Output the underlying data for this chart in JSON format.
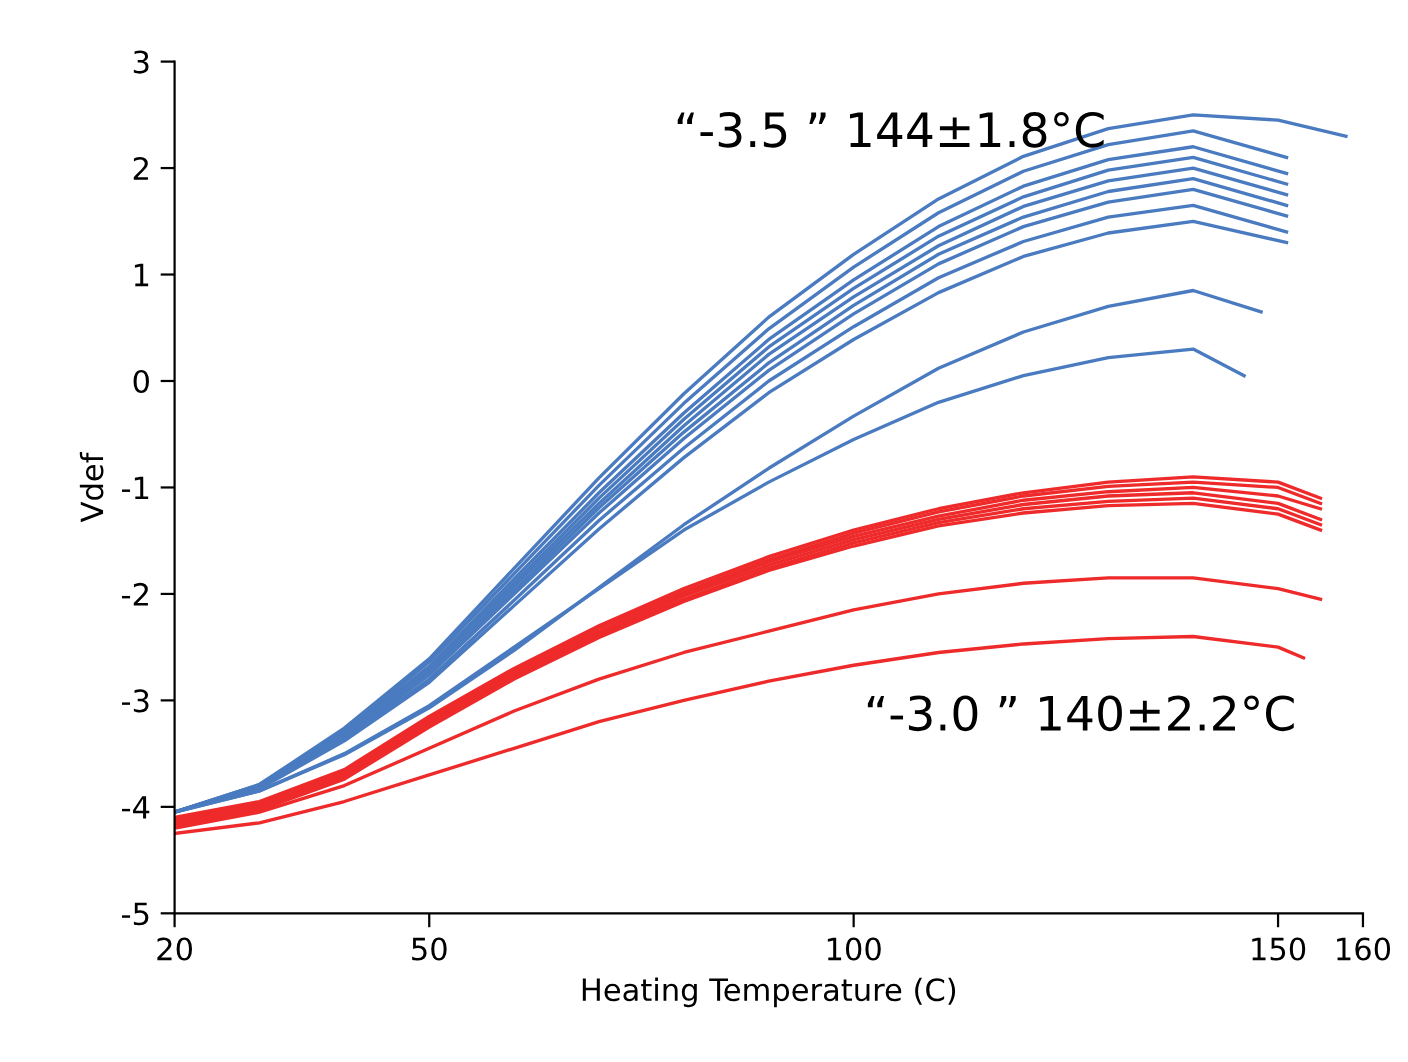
{
  "chart_data": {
    "type": "line",
    "xlabel": "Heating Temperature (C)",
    "ylabel": "Vdef",
    "xlim": [
      20,
      160
    ],
    "ylim": [
      -5,
      3
    ],
    "xticks": [
      20,
      50,
      100,
      150,
      160
    ],
    "yticks": [
      -5,
      -4,
      -3,
      -2,
      -1,
      0,
      1,
      2,
      3
    ],
    "grid": false,
    "legend": false,
    "marker": "none",
    "line_style": "solid",
    "annotations": [
      "“-3.5 ” 144±1.8°C",
      "“-3.0 ” 140±2.2°C"
    ],
    "series": [
      {
        "color": "#4a7bc0",
        "x": [
          20,
          30,
          40,
          50,
          60,
          70,
          80,
          90,
          100,
          110,
          120,
          130,
          140,
          150,
          158
        ],
        "values": [
          -4.05,
          -3.79,
          -3.26,
          -2.61,
          -1.76,
          -0.91,
          -0.12,
          0.6,
          1.19,
          1.71,
          2.11,
          2.37,
          2.5,
          2.45,
          2.3
        ]
      },
      {
        "color": "#4a7bc0",
        "x": [
          20,
          30,
          40,
          50,
          60,
          70,
          80,
          90,
          100,
          110,
          120,
          130,
          140,
          151
        ],
        "values": [
          -4.05,
          -3.79,
          -3.28,
          -2.64,
          -1.81,
          -0.98,
          -0.21,
          0.49,
          1.07,
          1.58,
          1.97,
          2.22,
          2.35,
          2.1
        ]
      },
      {
        "color": "#4a7bc0",
        "x": [
          20,
          30,
          40,
          50,
          60,
          70,
          80,
          90,
          100,
          110,
          120,
          130,
          140,
          151
        ],
        "values": [
          -4.05,
          -3.8,
          -3.3,
          -2.68,
          -1.86,
          -1.05,
          -0.3,
          0.39,
          0.95,
          1.45,
          1.83,
          2.08,
          2.2,
          1.95
        ]
      },
      {
        "color": "#4a7bc0",
        "x": [
          20,
          30,
          40,
          50,
          60,
          70,
          80,
          90,
          100,
          110,
          120,
          130,
          140,
          151
        ],
        "values": [
          -4.05,
          -3.8,
          -3.31,
          -2.7,
          -1.9,
          -1.1,
          -0.36,
          0.32,
          0.87,
          1.36,
          1.73,
          1.98,
          2.1,
          1.85
        ]
      },
      {
        "color": "#4a7bc0",
        "x": [
          20,
          30,
          40,
          50,
          60,
          70,
          80,
          90,
          100,
          110,
          120,
          130,
          140,
          151
        ],
        "values": [
          -4.05,
          -3.81,
          -3.32,
          -2.72,
          -1.93,
          -1.15,
          -0.42,
          0.25,
          0.79,
          1.27,
          1.64,
          1.88,
          2.0,
          1.75
        ]
      },
      {
        "color": "#4a7bc0",
        "x": [
          20,
          30,
          40,
          50,
          60,
          70,
          80,
          90,
          100,
          110,
          120,
          130,
          140,
          151
        ],
        "values": [
          -4.05,
          -3.81,
          -3.34,
          -2.74,
          -1.97,
          -1.19,
          -0.48,
          0.17,
          0.71,
          1.19,
          1.54,
          1.78,
          1.9,
          1.65
        ]
      },
      {
        "color": "#4a7bc0",
        "x": [
          20,
          30,
          40,
          50,
          60,
          70,
          80,
          90,
          100,
          110,
          120,
          130,
          140,
          151
        ],
        "values": [
          -4.05,
          -3.82,
          -3.35,
          -2.76,
          -2.0,
          -1.24,
          -0.54,
          0.1,
          0.63,
          1.1,
          1.45,
          1.68,
          1.8,
          1.55
        ]
      },
      {
        "color": "#4a7bc0",
        "x": [
          20,
          30,
          40,
          50,
          60,
          70,
          80,
          90,
          100,
          110,
          120,
          130,
          140,
          151
        ],
        "values": [
          -4.05,
          -3.82,
          -3.37,
          -2.8,
          -2.06,
          -1.31,
          -0.63,
          0.0,
          0.51,
          0.97,
          1.31,
          1.54,
          1.65,
          1.4
        ]
      },
      {
        "color": "#4a7bc0",
        "x": [
          20,
          30,
          40,
          50,
          60,
          70,
          80,
          90,
          100,
          110,
          120,
          130,
          140,
          151
        ],
        "values": [
          -4.05,
          -3.83,
          -3.38,
          -2.83,
          -2.11,
          -1.39,
          -0.72,
          -0.11,
          0.39,
          0.83,
          1.17,
          1.39,
          1.5,
          1.3
        ]
      },
      {
        "color": "#4a7bc0",
        "x": [
          20,
          30,
          40,
          50,
          60,
          70,
          80,
          90,
          100,
          110,
          120,
          130,
          140,
          148
        ],
        "values": [
          -4.05,
          -3.85,
          -3.51,
          -3.07,
          -2.53,
          -1.94,
          -1.35,
          -0.82,
          -0.33,
          0.12,
          0.46,
          0.7,
          0.85,
          0.65
        ]
      },
      {
        "color": "#4a7bc0",
        "x": [
          20,
          30,
          40,
          50,
          60,
          70,
          80,
          90,
          100,
          110,
          120,
          130,
          140,
          146
        ],
        "values": [
          -4.05,
          -3.85,
          -3.5,
          -3.05,
          -2.5,
          -1.95,
          -1.4,
          -0.95,
          -0.55,
          -0.2,
          0.05,
          0.22,
          0.3,
          0.05
        ]
      },
      {
        "color": "#ee2a2a",
        "x": [
          20,
          30,
          40,
          50,
          60,
          70,
          80,
          90,
          100,
          110,
          120,
          130,
          140,
          150,
          155
        ],
        "values": [
          -4.1,
          -3.95,
          -3.65,
          -3.15,
          -2.7,
          -2.3,
          -1.95,
          -1.65,
          -1.4,
          -1.2,
          -1.05,
          -0.95,
          -0.9,
          -0.95,
          -1.1
        ]
      },
      {
        "color": "#ee2a2a",
        "x": [
          20,
          30,
          40,
          50,
          60,
          70,
          80,
          90,
          100,
          110,
          120,
          130,
          140,
          150,
          155
        ],
        "values": [
          -4.12,
          -3.97,
          -3.67,
          -3.17,
          -2.72,
          -2.32,
          -1.98,
          -1.68,
          -1.43,
          -1.23,
          -1.08,
          -0.99,
          -0.95,
          -1.0,
          -1.15
        ]
      },
      {
        "color": "#ee2a2a",
        "x": [
          20,
          30,
          40,
          50,
          60,
          70,
          80,
          90,
          100,
          110,
          120,
          130,
          140,
          150,
          155
        ],
        "values": [
          -4.13,
          -3.98,
          -3.68,
          -3.19,
          -2.74,
          -2.35,
          -2.0,
          -1.7,
          -1.46,
          -1.27,
          -1.12,
          -1.04,
          -1.0,
          -1.08,
          -1.2
        ]
      },
      {
        "color": "#ee2a2a",
        "x": [
          20,
          30,
          40,
          50,
          60,
          70,
          80,
          90,
          100,
          110,
          120,
          130,
          140,
          150,
          155
        ],
        "values": [
          -4.15,
          -4.0,
          -3.7,
          -3.21,
          -2.76,
          -2.37,
          -2.02,
          -1.73,
          -1.49,
          -1.3,
          -1.16,
          -1.08,
          -1.05,
          -1.15,
          -1.3
        ]
      },
      {
        "color": "#ee2a2a",
        "x": [
          20,
          30,
          40,
          50,
          60,
          70,
          80,
          90,
          100,
          110,
          120,
          130,
          140,
          150,
          155
        ],
        "values": [
          -4.16,
          -4.01,
          -3.72,
          -3.23,
          -2.78,
          -2.39,
          -2.05,
          -1.76,
          -1.52,
          -1.33,
          -1.2,
          -1.13,
          -1.1,
          -1.2,
          -1.35
        ]
      },
      {
        "color": "#ee2a2a",
        "x": [
          20,
          30,
          40,
          50,
          60,
          70,
          80,
          90,
          100,
          110,
          120,
          130,
          140,
          150,
          155
        ],
        "values": [
          -4.18,
          -4.03,
          -3.74,
          -3.25,
          -2.8,
          -2.41,
          -2.07,
          -1.78,
          -1.55,
          -1.36,
          -1.24,
          -1.17,
          -1.15,
          -1.25,
          -1.4
        ]
      },
      {
        "color": "#ee2a2a",
        "x": [
          20,
          30,
          40,
          50,
          60,
          70,
          80,
          90,
          100,
          110,
          120,
          130,
          140,
          150,
          155
        ],
        "values": [
          -4.2,
          -4.05,
          -3.8,
          -3.45,
          -3.1,
          -2.8,
          -2.55,
          -2.35,
          -2.15,
          -2.0,
          -1.9,
          -1.85,
          -1.85,
          -1.95,
          -2.05
        ]
      },
      {
        "color": "#ee2a2a",
        "x": [
          20,
          30,
          40,
          50,
          60,
          70,
          80,
          90,
          100,
          110,
          120,
          130,
          140,
          150,
          153
        ],
        "values": [
          -4.25,
          -4.15,
          -3.95,
          -3.7,
          -3.45,
          -3.2,
          -3.0,
          -2.82,
          -2.67,
          -2.55,
          -2.47,
          -2.42,
          -2.4,
          -2.5,
          -2.6
        ]
      }
    ]
  }
}
